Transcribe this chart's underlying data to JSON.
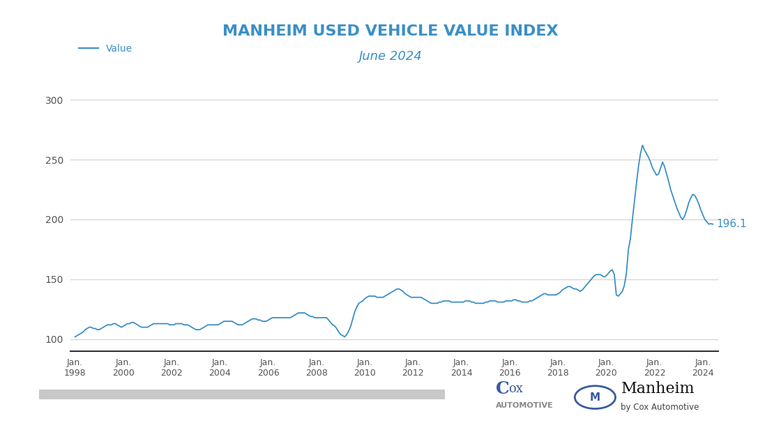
{
  "title": "MANHEIM USED VEHICLE VALUE INDEX",
  "subtitle": "June 2024",
  "line_color": "#3a8fc7",
  "title_color": "#3a8fc7",
  "subtitle_color": "#3a8fc7",
  "background_color": "#ffffff",
  "grid_color": "#cccccc",
  "final_value": "196.1",
  "final_value_color": "#3a8fc7",
  "tick_color": "#555555",
  "ylim": [
    90,
    310
  ],
  "yticks": [
    100,
    150,
    200,
    250,
    300
  ],
  "legend_label": "Value",
  "data": {
    "dates": [
      1998.0,
      1998.083,
      1998.167,
      1998.25,
      1998.333,
      1998.417,
      1998.5,
      1998.583,
      1998.667,
      1998.75,
      1998.833,
      1998.917,
      1999.0,
      1999.083,
      1999.167,
      1999.25,
      1999.333,
      1999.417,
      1999.5,
      1999.583,
      1999.667,
      1999.75,
      1999.833,
      1999.917,
      2000.0,
      2000.083,
      2000.167,
      2000.25,
      2000.333,
      2000.417,
      2000.5,
      2000.583,
      2000.667,
      2000.75,
      2000.833,
      2000.917,
      2001.0,
      2001.083,
      2001.167,
      2001.25,
      2001.333,
      2001.417,
      2001.5,
      2001.583,
      2001.667,
      2001.75,
      2001.833,
      2001.917,
      2002.0,
      2002.083,
      2002.167,
      2002.25,
      2002.333,
      2002.417,
      2002.5,
      2002.583,
      2002.667,
      2002.75,
      2002.833,
      2002.917,
      2003.0,
      2003.083,
      2003.167,
      2003.25,
      2003.333,
      2003.417,
      2003.5,
      2003.583,
      2003.667,
      2003.75,
      2003.833,
      2003.917,
      2004.0,
      2004.083,
      2004.167,
      2004.25,
      2004.333,
      2004.417,
      2004.5,
      2004.583,
      2004.667,
      2004.75,
      2004.833,
      2004.917,
      2005.0,
      2005.083,
      2005.167,
      2005.25,
      2005.333,
      2005.417,
      2005.5,
      2005.583,
      2005.667,
      2005.75,
      2005.833,
      2005.917,
      2006.0,
      2006.083,
      2006.167,
      2006.25,
      2006.333,
      2006.417,
      2006.5,
      2006.583,
      2006.667,
      2006.75,
      2006.833,
      2006.917,
      2007.0,
      2007.083,
      2007.167,
      2007.25,
      2007.333,
      2007.417,
      2007.5,
      2007.583,
      2007.667,
      2007.75,
      2007.833,
      2007.917,
      2008.0,
      2008.083,
      2008.167,
      2008.25,
      2008.333,
      2008.417,
      2008.5,
      2008.583,
      2008.667,
      2008.75,
      2008.833,
      2008.917,
      2009.0,
      2009.083,
      2009.167,
      2009.25,
      2009.333,
      2009.417,
      2009.5,
      2009.583,
      2009.667,
      2009.75,
      2009.833,
      2009.917,
      2010.0,
      2010.083,
      2010.167,
      2010.25,
      2010.333,
      2010.417,
      2010.5,
      2010.583,
      2010.667,
      2010.75,
      2010.833,
      2010.917,
      2011.0,
      2011.083,
      2011.167,
      2011.25,
      2011.333,
      2011.417,
      2011.5,
      2011.583,
      2011.667,
      2011.75,
      2011.833,
      2011.917,
      2012.0,
      2012.083,
      2012.167,
      2012.25,
      2012.333,
      2012.417,
      2012.5,
      2012.583,
      2012.667,
      2012.75,
      2012.833,
      2012.917,
      2013.0,
      2013.083,
      2013.167,
      2013.25,
      2013.333,
      2013.417,
      2013.5,
      2013.583,
      2013.667,
      2013.75,
      2013.833,
      2013.917,
      2014.0,
      2014.083,
      2014.167,
      2014.25,
      2014.333,
      2014.417,
      2014.5,
      2014.583,
      2014.667,
      2014.75,
      2014.833,
      2014.917,
      2015.0,
      2015.083,
      2015.167,
      2015.25,
      2015.333,
      2015.417,
      2015.5,
      2015.583,
      2015.667,
      2015.75,
      2015.833,
      2015.917,
      2016.0,
      2016.083,
      2016.167,
      2016.25,
      2016.333,
      2016.417,
      2016.5,
      2016.583,
      2016.667,
      2016.75,
      2016.833,
      2016.917,
      2017.0,
      2017.083,
      2017.167,
      2017.25,
      2017.333,
      2017.417,
      2017.5,
      2017.583,
      2017.667,
      2017.75,
      2017.833,
      2017.917,
      2018.0,
      2018.083,
      2018.167,
      2018.25,
      2018.333,
      2018.417,
      2018.5,
      2018.583,
      2018.667,
      2018.75,
      2018.833,
      2018.917,
      2019.0,
      2019.083,
      2019.167,
      2019.25,
      2019.333,
      2019.417,
      2019.5,
      2019.583,
      2019.667,
      2019.75,
      2019.833,
      2019.917,
      2020.0,
      2020.083,
      2020.167,
      2020.25,
      2020.333,
      2020.417,
      2020.5,
      2020.583,
      2020.667,
      2020.75,
      2020.833,
      2020.917,
      2021.0,
      2021.083,
      2021.167,
      2021.25,
      2021.333,
      2021.417,
      2021.5,
      2021.583,
      2021.667,
      2021.75,
      2021.833,
      2021.917,
      2022.0,
      2022.083,
      2022.167,
      2022.25,
      2022.333,
      2022.417,
      2022.5,
      2022.583,
      2022.667,
      2022.75,
      2022.833,
      2022.917,
      2023.0,
      2023.083,
      2023.167,
      2023.25,
      2023.333,
      2023.417,
      2023.5,
      2023.583,
      2023.667,
      2023.75,
      2023.833,
      2023.917,
      2024.0,
      2024.083,
      2024.167,
      2024.25,
      2024.333,
      2024.417
    ],
    "values": [
      102,
      103,
      104,
      105,
      106,
      108,
      109,
      110,
      110,
      109,
      109,
      108,
      108,
      109,
      110,
      111,
      112,
      112,
      112,
      113,
      113,
      112,
      111,
      110,
      111,
      112,
      113,
      113,
      114,
      114,
      113,
      112,
      111,
      110,
      110,
      110,
      110,
      111,
      112,
      113,
      113,
      113,
      113,
      113,
      113,
      113,
      113,
      112,
      112,
      112,
      113,
      113,
      113,
      113,
      112,
      112,
      112,
      111,
      110,
      109,
      108,
      108,
      108,
      109,
      110,
      111,
      112,
      112,
      112,
      112,
      112,
      112,
      113,
      114,
      115,
      115,
      115,
      115,
      115,
      114,
      113,
      112,
      112,
      112,
      113,
      114,
      115,
      116,
      117,
      117,
      117,
      116,
      116,
      115,
      115,
      115,
      116,
      117,
      118,
      118,
      118,
      118,
      118,
      118,
      118,
      118,
      118,
      118,
      119,
      120,
      121,
      122,
      122,
      122,
      122,
      121,
      120,
      119,
      119,
      118,
      118,
      118,
      118,
      118,
      118,
      118,
      116,
      114,
      112,
      111,
      109,
      106,
      104,
      103,
      102,
      104,
      107,
      111,
      117,
      123,
      127,
      130,
      131,
      132,
      134,
      135,
      136,
      136,
      136,
      136,
      135,
      135,
      135,
      135,
      136,
      137,
      138,
      139,
      140,
      141,
      142,
      142,
      141,
      140,
      138,
      137,
      136,
      135,
      135,
      135,
      135,
      135,
      135,
      134,
      133,
      132,
      131,
      130,
      130,
      130,
      130,
      131,
      131,
      132,
      132,
      132,
      132,
      131,
      131,
      131,
      131,
      131,
      131,
      131,
      132,
      132,
      132,
      131,
      131,
      130,
      130,
      130,
      130,
      130,
      131,
      131,
      132,
      132,
      132,
      132,
      131,
      131,
      131,
      131,
      132,
      132,
      132,
      132,
      133,
      133,
      132,
      132,
      131,
      131,
      131,
      131,
      132,
      132,
      133,
      134,
      135,
      136,
      137,
      138,
      138,
      137,
      137,
      137,
      137,
      137,
      138,
      139,
      141,
      142,
      143,
      144,
      144,
      143,
      142,
      142,
      141,
      140,
      141,
      143,
      145,
      147,
      149,
      151,
      153,
      154,
      154,
      154,
      153,
      152,
      153,
      155,
      157,
      158,
      154,
      137,
      136,
      138,
      140,
      145,
      155,
      175,
      184,
      200,
      215,
      230,
      244,
      255,
      262,
      258,
      255,
      252,
      248,
      243,
      240,
      237,
      238,
      243,
      248,
      244,
      238,
      232,
      225,
      220,
      215,
      210,
      206,
      202,
      200,
      203,
      208,
      214,
      218,
      221,
      220,
      217,
      213,
      208,
      204,
      200,
      198,
      196.1,
      196.5,
      196.1
    ]
  },
  "xtick_positions": [
    1998,
    2000,
    2002,
    2004,
    2006,
    2008,
    2010,
    2012,
    2014,
    2016,
    2018,
    2020,
    2022,
    2024
  ],
  "xtick_labels": [
    "Jan.\n1998",
    "Jan.\n2000",
    "Jan.\n2002",
    "Jan.\n2004",
    "Jan.\n2006",
    "Jan.\n2008",
    "Jan.\n2010",
    "Jan.\n2012",
    "Jan.\n2014",
    "Jan.\n2016",
    "Jan.\n2018",
    "Jan.\n2020",
    "Jan.\n2022",
    "Jan.\n2024"
  ],
  "bar_color": "#c8c8c8",
  "cox_C_color": "#3a5ba0",
  "cox_sub_color": "#888888",
  "manheim_text_color": "#111111",
  "manheim_sub_color": "#444444",
  "manheim_circle_color": "#3a5ba0"
}
